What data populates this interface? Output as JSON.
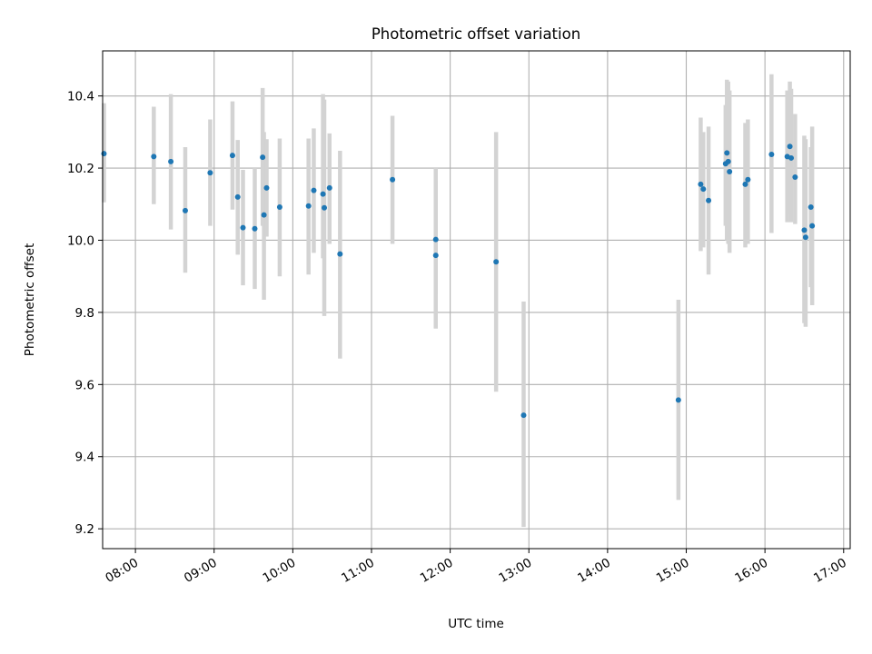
{
  "chart_data": {
    "type": "scatter",
    "title": "Photometric offset variation",
    "xlabel": "UTC time",
    "ylabel": "Photometric offset",
    "x_ticks": [
      "08:00",
      "09:00",
      "10:00",
      "11:00",
      "12:00",
      "13:00",
      "14:00",
      "15:00",
      "16:00",
      "17:00"
    ],
    "y_ticks": [
      "9.2",
      "9.4",
      "9.6",
      "9.8",
      "10.0",
      "10.2",
      "10.4"
    ],
    "xlim": [
      "07:35",
      "17:05"
    ],
    "ylim": [
      9.145,
      10.525
    ],
    "grid": true,
    "colors": {
      "point": "#1f77b4",
      "errorbar": "#d3d3d3",
      "grid": "#b0b0b0"
    },
    "series": [
      {
        "points": [
          {
            "x": "07:36",
            "y": 10.24,
            "ylo": 10.105,
            "yhi": 10.38
          },
          {
            "x": "08:14",
            "y": 10.232,
            "ylo": 10.1,
            "yhi": 10.37
          },
          {
            "x": "08:27",
            "y": 10.218,
            "ylo": 10.03,
            "yhi": 10.405
          },
          {
            "x": "08:38",
            "y": 10.082,
            "ylo": 9.91,
            "yhi": 10.258
          },
          {
            "x": "08:57",
            "y": 10.187,
            "ylo": 10.04,
            "yhi": 10.335
          },
          {
            "x": "09:14",
            "y": 10.235,
            "ylo": 10.085,
            "yhi": 10.385
          },
          {
            "x": "09:18",
            "y": 10.12,
            "ylo": 9.96,
            "yhi": 10.278
          },
          {
            "x": "09:22",
            "y": 10.035,
            "ylo": 9.875,
            "yhi": 10.195
          },
          {
            "x": "09:31",
            "y": 10.032,
            "ylo": 9.865,
            "yhi": 10.2
          },
          {
            "x": "09:37",
            "y": 10.23,
            "ylo": 10.04,
            "yhi": 10.422
          },
          {
            "x": "09:38",
            "y": 10.07,
            "ylo": 9.835,
            "yhi": 10.3
          },
          {
            "x": "09:40",
            "y": 10.145,
            "ylo": 10.01,
            "yhi": 10.28
          },
          {
            "x": "09:50",
            "y": 10.092,
            "ylo": 9.9,
            "yhi": 10.282
          },
          {
            "x": "10:12",
            "y": 10.095,
            "ylo": 9.905,
            "yhi": 10.282
          },
          {
            "x": "10:16",
            "y": 10.138,
            "ylo": 9.965,
            "yhi": 10.31
          },
          {
            "x": "10:23",
            "y": 10.128,
            "ylo": 9.95,
            "yhi": 10.405
          },
          {
            "x": "10:24",
            "y": 10.09,
            "ylo": 9.79,
            "yhi": 10.39
          },
          {
            "x": "10:28",
            "y": 10.145,
            "ylo": 9.99,
            "yhi": 10.296
          },
          {
            "x": "10:36",
            "y": 9.962,
            "ylo": 9.672,
            "yhi": 10.248
          },
          {
            "x": "11:16",
            "y": 10.168,
            "ylo": 9.99,
            "yhi": 10.345
          },
          {
            "x": "11:49",
            "y": 10.002,
            "ylo": 9.85,
            "yhi": 10.2
          },
          {
            "x": "11:49",
            "y": 9.958,
            "ylo": 9.755,
            "yhi": 10.165
          },
          {
            "x": "12:35",
            "y": 9.94,
            "ylo": 9.58,
            "yhi": 10.3
          },
          {
            "x": "12:56",
            "y": 9.515,
            "ylo": 9.205,
            "yhi": 9.83
          },
          {
            "x": "14:54",
            "y": 9.557,
            "ylo": 9.28,
            "yhi": 9.835
          },
          {
            "x": "15:11",
            "y": 10.155,
            "ylo": 9.97,
            "yhi": 10.34
          },
          {
            "x": "15:13",
            "y": 10.142,
            "ylo": 9.98,
            "yhi": 10.3
          },
          {
            "x": "15:17",
            "y": 10.11,
            "ylo": 9.905,
            "yhi": 10.315
          },
          {
            "x": "15:30",
            "y": 10.212,
            "ylo": 10.04,
            "yhi": 10.375
          },
          {
            "x": "15:31",
            "y": 10.242,
            "ylo": 10.0,
            "yhi": 10.445
          },
          {
            "x": "15:32",
            "y": 10.218,
            "ylo": 9.99,
            "yhi": 10.44
          },
          {
            "x": "15:33",
            "y": 10.19,
            "ylo": 9.965,
            "yhi": 10.415
          },
          {
            "x": "15:45",
            "y": 10.155,
            "ylo": 9.98,
            "yhi": 10.325
          },
          {
            "x": "15:47",
            "y": 10.168,
            "ylo": 9.99,
            "yhi": 10.335
          },
          {
            "x": "16:05",
            "y": 10.238,
            "ylo": 10.02,
            "yhi": 10.46
          },
          {
            "x": "16:17",
            "y": 10.232,
            "ylo": 10.05,
            "yhi": 10.415
          },
          {
            "x": "16:19",
            "y": 10.26,
            "ylo": 10.07,
            "yhi": 10.44
          },
          {
            "x": "16:20",
            "y": 10.228,
            "ylo": 10.05,
            "yhi": 10.42
          },
          {
            "x": "16:23",
            "y": 10.175,
            "ylo": 10.045,
            "yhi": 10.35
          },
          {
            "x": "16:30",
            "y": 10.028,
            "ylo": 9.77,
            "yhi": 10.29
          },
          {
            "x": "16:31",
            "y": 10.008,
            "ylo": 9.76,
            "yhi": 10.28
          },
          {
            "x": "16:35",
            "y": 10.092,
            "ylo": 9.87,
            "yhi": 10.258
          },
          {
            "x": "16:36",
            "y": 10.04,
            "ylo": 9.82,
            "yhi": 10.315
          }
        ]
      }
    ]
  }
}
